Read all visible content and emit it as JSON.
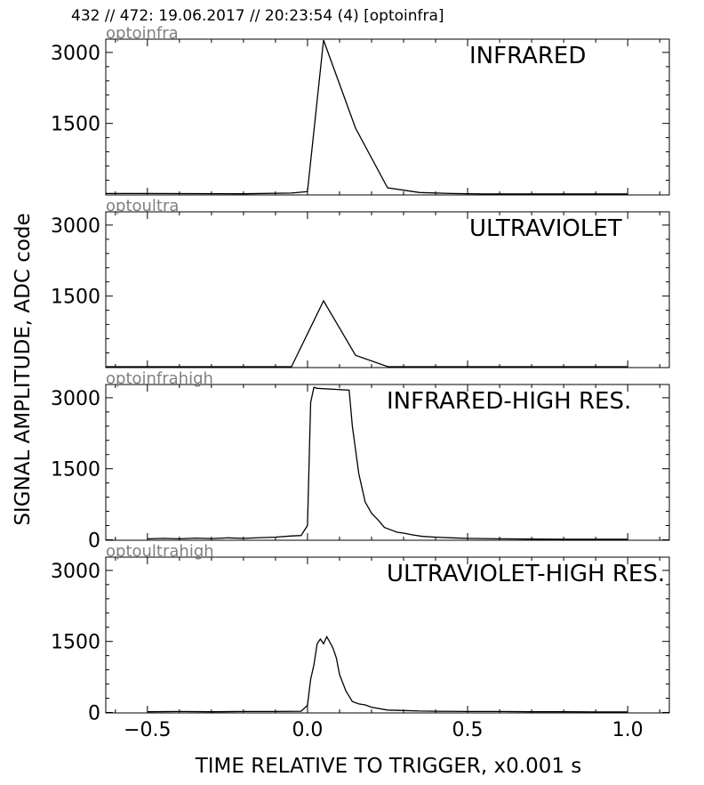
{
  "header": {
    "title": "432 // 472:   19.06.2017 // 20:23:54 (4)  [optoinfra]"
  },
  "chart_data": {
    "type": "line",
    "title": "432 // 472:   19.06.2017 // 20:23:54 (4)  [optoinfra]",
    "xlabel": "TIME RELATIVE TO TRIGGER,   x0.001 s",
    "ylabel": "SIGNAL AMPLITUDE,  ADC code",
    "xlim": [
      -0.63,
      1.13
    ],
    "x_ticks": [
      -0.5,
      0.0,
      0.5,
      1.0
    ],
    "x_tick_labels": [
      "−0.5",
      "0.0",
      "0.5",
      "1.0"
    ],
    "grid": false,
    "line_color": "#000000",
    "channel_label_color": "#808080",
    "panels": [
      {
        "channel": "optoinfra",
        "label": "INFRARED",
        "ylim": [
          -10,
          3280
        ],
        "y_ticks": [
          1500,
          3000
        ],
        "y_tick_labels": [
          "1500",
          "3000"
        ],
        "x": [
          -0.63,
          -0.5,
          -0.2,
          -0.05,
          0.0,
          0.05,
          0.15,
          0.25,
          0.35,
          0.45,
          0.55,
          1.0
        ],
        "y": [
          20,
          20,
          15,
          30,
          60,
          3260,
          1400,
          140,
          40,
          20,
          10,
          10
        ]
      },
      {
        "channel": "optoultra",
        "label": "ULTRAVIOLET",
        "ylim": [
          -10,
          3280
        ],
        "y_ticks": [
          1500,
          3000
        ],
        "y_tick_labels": [
          "1500",
          "3000"
        ],
        "x": [
          -0.63,
          -0.3,
          -0.05,
          0.05,
          0.15,
          0.25,
          0.35,
          1.0
        ],
        "y": [
          0,
          0,
          0,
          1400,
          250,
          10,
          0,
          0
        ]
      },
      {
        "channel": "optoinfrahigh",
        "label": "INFRARED-HIGH RES.",
        "ylim": [
          -10,
          3280
        ],
        "y_ticks": [
          0,
          1500,
          3000
        ],
        "y_tick_labels": [
          "0",
          "1500",
          "3000"
        ],
        "x": [
          -0.5,
          -0.45,
          -0.4,
          -0.35,
          -0.3,
          -0.25,
          -0.2,
          -0.15,
          -0.1,
          -0.05,
          -0.02,
          0.0,
          0.01,
          0.02,
          0.03,
          0.13,
          0.14,
          0.16,
          0.18,
          0.2,
          0.22,
          0.24,
          0.26,
          0.28,
          0.3,
          0.33,
          0.36,
          0.4,
          0.45,
          0.5,
          0.6,
          0.7,
          0.8,
          0.9,
          1.0
        ],
        "y": [
          20,
          30,
          20,
          35,
          25,
          40,
          30,
          45,
          55,
          80,
          90,
          300,
          2900,
          3220,
          3200,
          3160,
          2400,
          1400,
          800,
          560,
          420,
          260,
          210,
          160,
          140,
          100,
          70,
          55,
          40,
          30,
          20,
          15,
          10,
          10,
          10
        ]
      },
      {
        "channel": "optoultrahigh",
        "label": "ULTRAVIOLET-HIGH RES.",
        "ylim": [
          -10,
          3280
        ],
        "y_ticks": [
          0,
          1500,
          3000
        ],
        "y_tick_labels": [
          "0",
          "1500",
          "3000"
        ],
        "x": [
          -0.5,
          -0.4,
          -0.3,
          -0.2,
          -0.1,
          -0.02,
          0.0,
          0.01,
          0.02,
          0.03,
          0.04,
          0.05,
          0.06,
          0.07,
          0.08,
          0.09,
          0.1,
          0.12,
          0.14,
          0.16,
          0.18,
          0.2,
          0.25,
          0.3,
          0.35,
          0.4,
          0.5,
          0.6,
          0.7,
          0.8,
          0.9,
          1.0
        ],
        "y": [
          15,
          20,
          15,
          20,
          20,
          25,
          150,
          700,
          1000,
          1450,
          1550,
          1450,
          1600,
          1480,
          1350,
          1150,
          800,
          450,
          230,
          180,
          160,
          110,
          50,
          40,
          30,
          25,
          20,
          20,
          15,
          15,
          10,
          10
        ]
      }
    ]
  }
}
